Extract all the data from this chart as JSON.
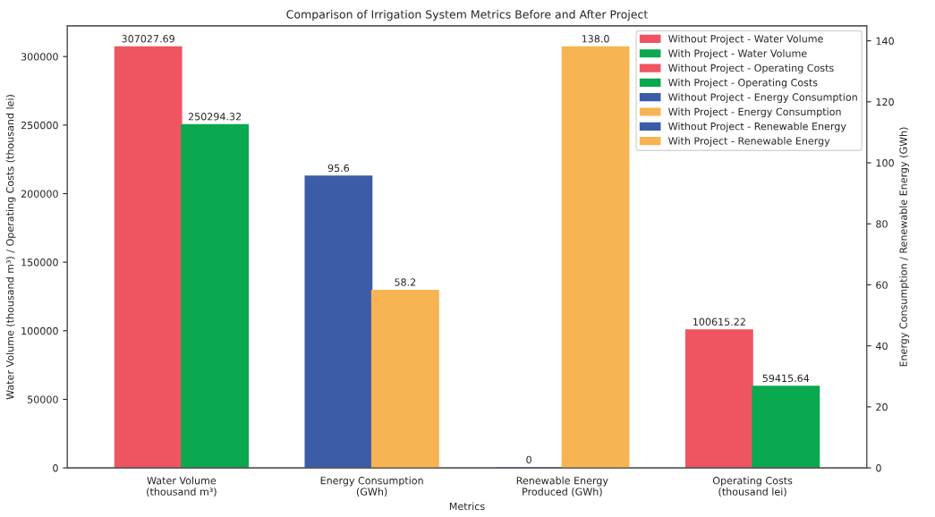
{
  "chart_data": {
    "type": "bar",
    "title": "Comparison of Irrigation System Metrics Before and After Project",
    "xlabel": "Metrics",
    "ylabel": "Water Volume (thousand m³) / Operating Costs (thousand lei)",
    "y2label": "Energy Consumption / Renewable Energy (GWh)",
    "categories": [
      "Water Volume\n(thousand m³)",
      "Energy Consumption\n(GWh)",
      "Renewable Energy\nProduced (GWh)",
      "Operating Costs\n(thousand lei)"
    ],
    "series": [
      {
        "name": "Without Project - Water Volume",
        "color": "#ef5560",
        "values": [
          307027.69,
          null,
          null,
          null
        ],
        "value_labels": [
          "307027.69",
          null,
          null,
          null
        ]
      },
      {
        "name": "With Project - Water Volume",
        "color": "#0aa84f",
        "values": [
          250294.32,
          null,
          null,
          null
        ],
        "value_labels": [
          "250294.32",
          null,
          null,
          null
        ]
      },
      {
        "name": "Without Project - Operating Costs",
        "color": "#ef5560",
        "values": [
          null,
          null,
          null,
          100615.22
        ],
        "value_labels": [
          null,
          null,
          null,
          "100615.22"
        ]
      },
      {
        "name": "With Project - Operating Costs",
        "color": "#0aa84f",
        "values": [
          null,
          null,
          null,
          59415.64
        ],
        "value_labels": [
          null,
          null,
          null,
          "59415.64"
        ]
      },
      {
        "name": "Without Project - Energy Consumption",
        "color": "#3d5ca8",
        "axis": "y2",
        "values": [
          null,
          95.6,
          null,
          null
        ],
        "value_labels": [
          null,
          "95.6",
          null,
          null
        ]
      },
      {
        "name": "With Project - Energy Consumption",
        "color": "#f7b452",
        "axis": "y2",
        "values": [
          null,
          58.2,
          null,
          null
        ],
        "value_labels": [
          null,
          "58.2",
          null,
          null
        ]
      },
      {
        "name": "Without Project - Renewable Energy",
        "color": "#3d5ca8",
        "axis": "y2",
        "values": [
          null,
          null,
          0,
          null
        ],
        "value_labels": [
          null,
          null,
          "0",
          null
        ]
      },
      {
        "name": "With Project - Renewable Energy",
        "color": "#f7b452",
        "axis": "y2",
        "values": [
          null,
          null,
          138.0,
          null
        ],
        "value_labels": [
          null,
          null,
          "138.0",
          null
        ]
      }
    ],
    "ylim": [
      0,
      322379
    ],
    "yticks": [
      0,
      50000,
      100000,
      150000,
      200000,
      250000,
      300000
    ],
    "y2lim": [
      0,
      144.9
    ],
    "y2ticks": [
      0,
      20,
      40,
      60,
      80,
      100,
      120,
      140
    ],
    "legend": "top right",
    "grid": false
  }
}
